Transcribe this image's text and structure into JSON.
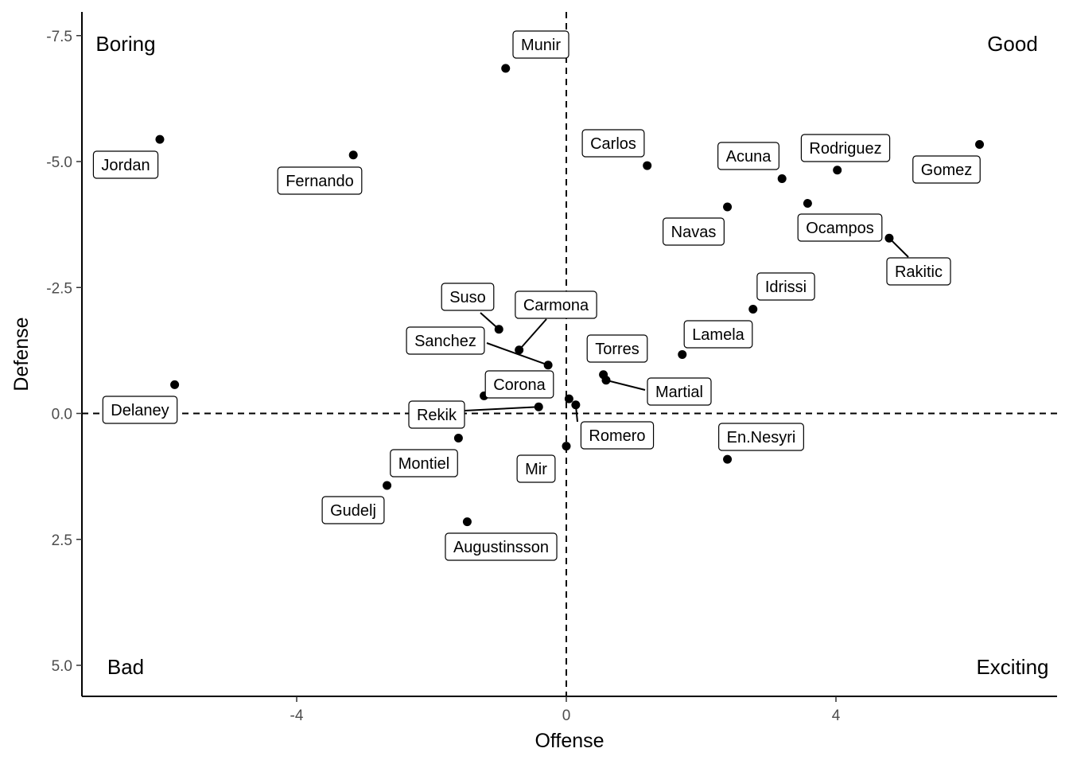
{
  "chart_data": {
    "type": "scatter",
    "xlabel": "Offense",
    "ylabel": "Defense",
    "xlim": [
      -7.2,
      7.25
    ],
    "ylim": [
      -8.0,
      5.6
    ],
    "y_reversed": true,
    "x_ticks": [
      -4,
      0,
      4
    ],
    "x_tick_labels": [
      "-4",
      "0",
      "4"
    ],
    "y_ticks": [
      -7.5,
      -5.0,
      -2.5,
      0.0,
      2.5,
      5.0
    ],
    "y_tick_labels": [
      "-7.5",
      "-5.0",
      "-2.5",
      "0.0",
      "2.5",
      "5.0"
    ],
    "reference_lines": {
      "x": 0,
      "y": 0,
      "style": "dashed"
    },
    "grid": false,
    "quadrant_labels": [
      {
        "text": "Boring",
        "corner": "top-left"
      },
      {
        "text": "Good",
        "corner": "top-right"
      },
      {
        "text": "Bad",
        "corner": "bottom-left"
      },
      {
        "text": "Exciting",
        "corner": "bottom-right"
      }
    ],
    "points": [
      {
        "label": "Munir",
        "x": -0.9,
        "y": -6.85
      },
      {
        "label": "Jordan",
        "x": -6.03,
        "y": -5.44
      },
      {
        "label": "Fernando",
        "x": -3.16,
        "y": -5.13
      },
      {
        "label": "Carlos",
        "x": 1.2,
        "y": -4.92
      },
      {
        "label": "Acuna",
        "x": 3.2,
        "y": -4.66
      },
      {
        "label": "Rodriguez",
        "x": 4.02,
        "y": -4.83
      },
      {
        "label": "Gomez",
        "x": 6.13,
        "y": -5.34
      },
      {
        "label": "Navas",
        "x": 2.39,
        "y": -4.1
      },
      {
        "label": "Ocampos",
        "x": 3.58,
        "y": -4.17
      },
      {
        "label": "Rakitic",
        "x": 4.79,
        "y": -3.48
      },
      {
        "label": "Idrissi",
        "x": 2.77,
        "y": -2.07
      },
      {
        "label": "Lamela",
        "x": 1.72,
        "y": -1.17
      },
      {
        "label": "Suso",
        "x": -1.0,
        "y": -1.67
      },
      {
        "label": "Carmona",
        "x": -0.7,
        "y": -1.26
      },
      {
        "label": "Sanchez",
        "x": -0.27,
        "y": -0.96
      },
      {
        "label": "Torres",
        "x": 0.55,
        "y": -0.77
      },
      {
        "label": "Martial",
        "x": 0.59,
        "y": -0.66
      },
      {
        "label": "Corona",
        "x": -1.22,
        "y": -0.35
      },
      {
        "label": "Delaney",
        "x": -5.81,
        "y": -0.57
      },
      {
        "label": "Rekik",
        "x": -0.41,
        "y": -0.13
      },
      {
        "label": "Mir",
        "x": 0.04,
        "y": -0.29
      },
      {
        "label": "Romero",
        "x": 0.14,
        "y": -0.17
      },
      {
        "label": "En.Nesyri",
        "x": 2.39,
        "y": 0.91
      },
      {
        "label": "Montiel",
        "x": -1.6,
        "y": 0.49
      },
      {
        "label": "Gudelj",
        "x": -2.66,
        "y": 1.43
      },
      {
        "label": "Augustinsson",
        "x": -1.47,
        "y": 2.15
      },
      {
        "label": "",
        "x": 0.0,
        "y": 0.65
      }
    ]
  }
}
